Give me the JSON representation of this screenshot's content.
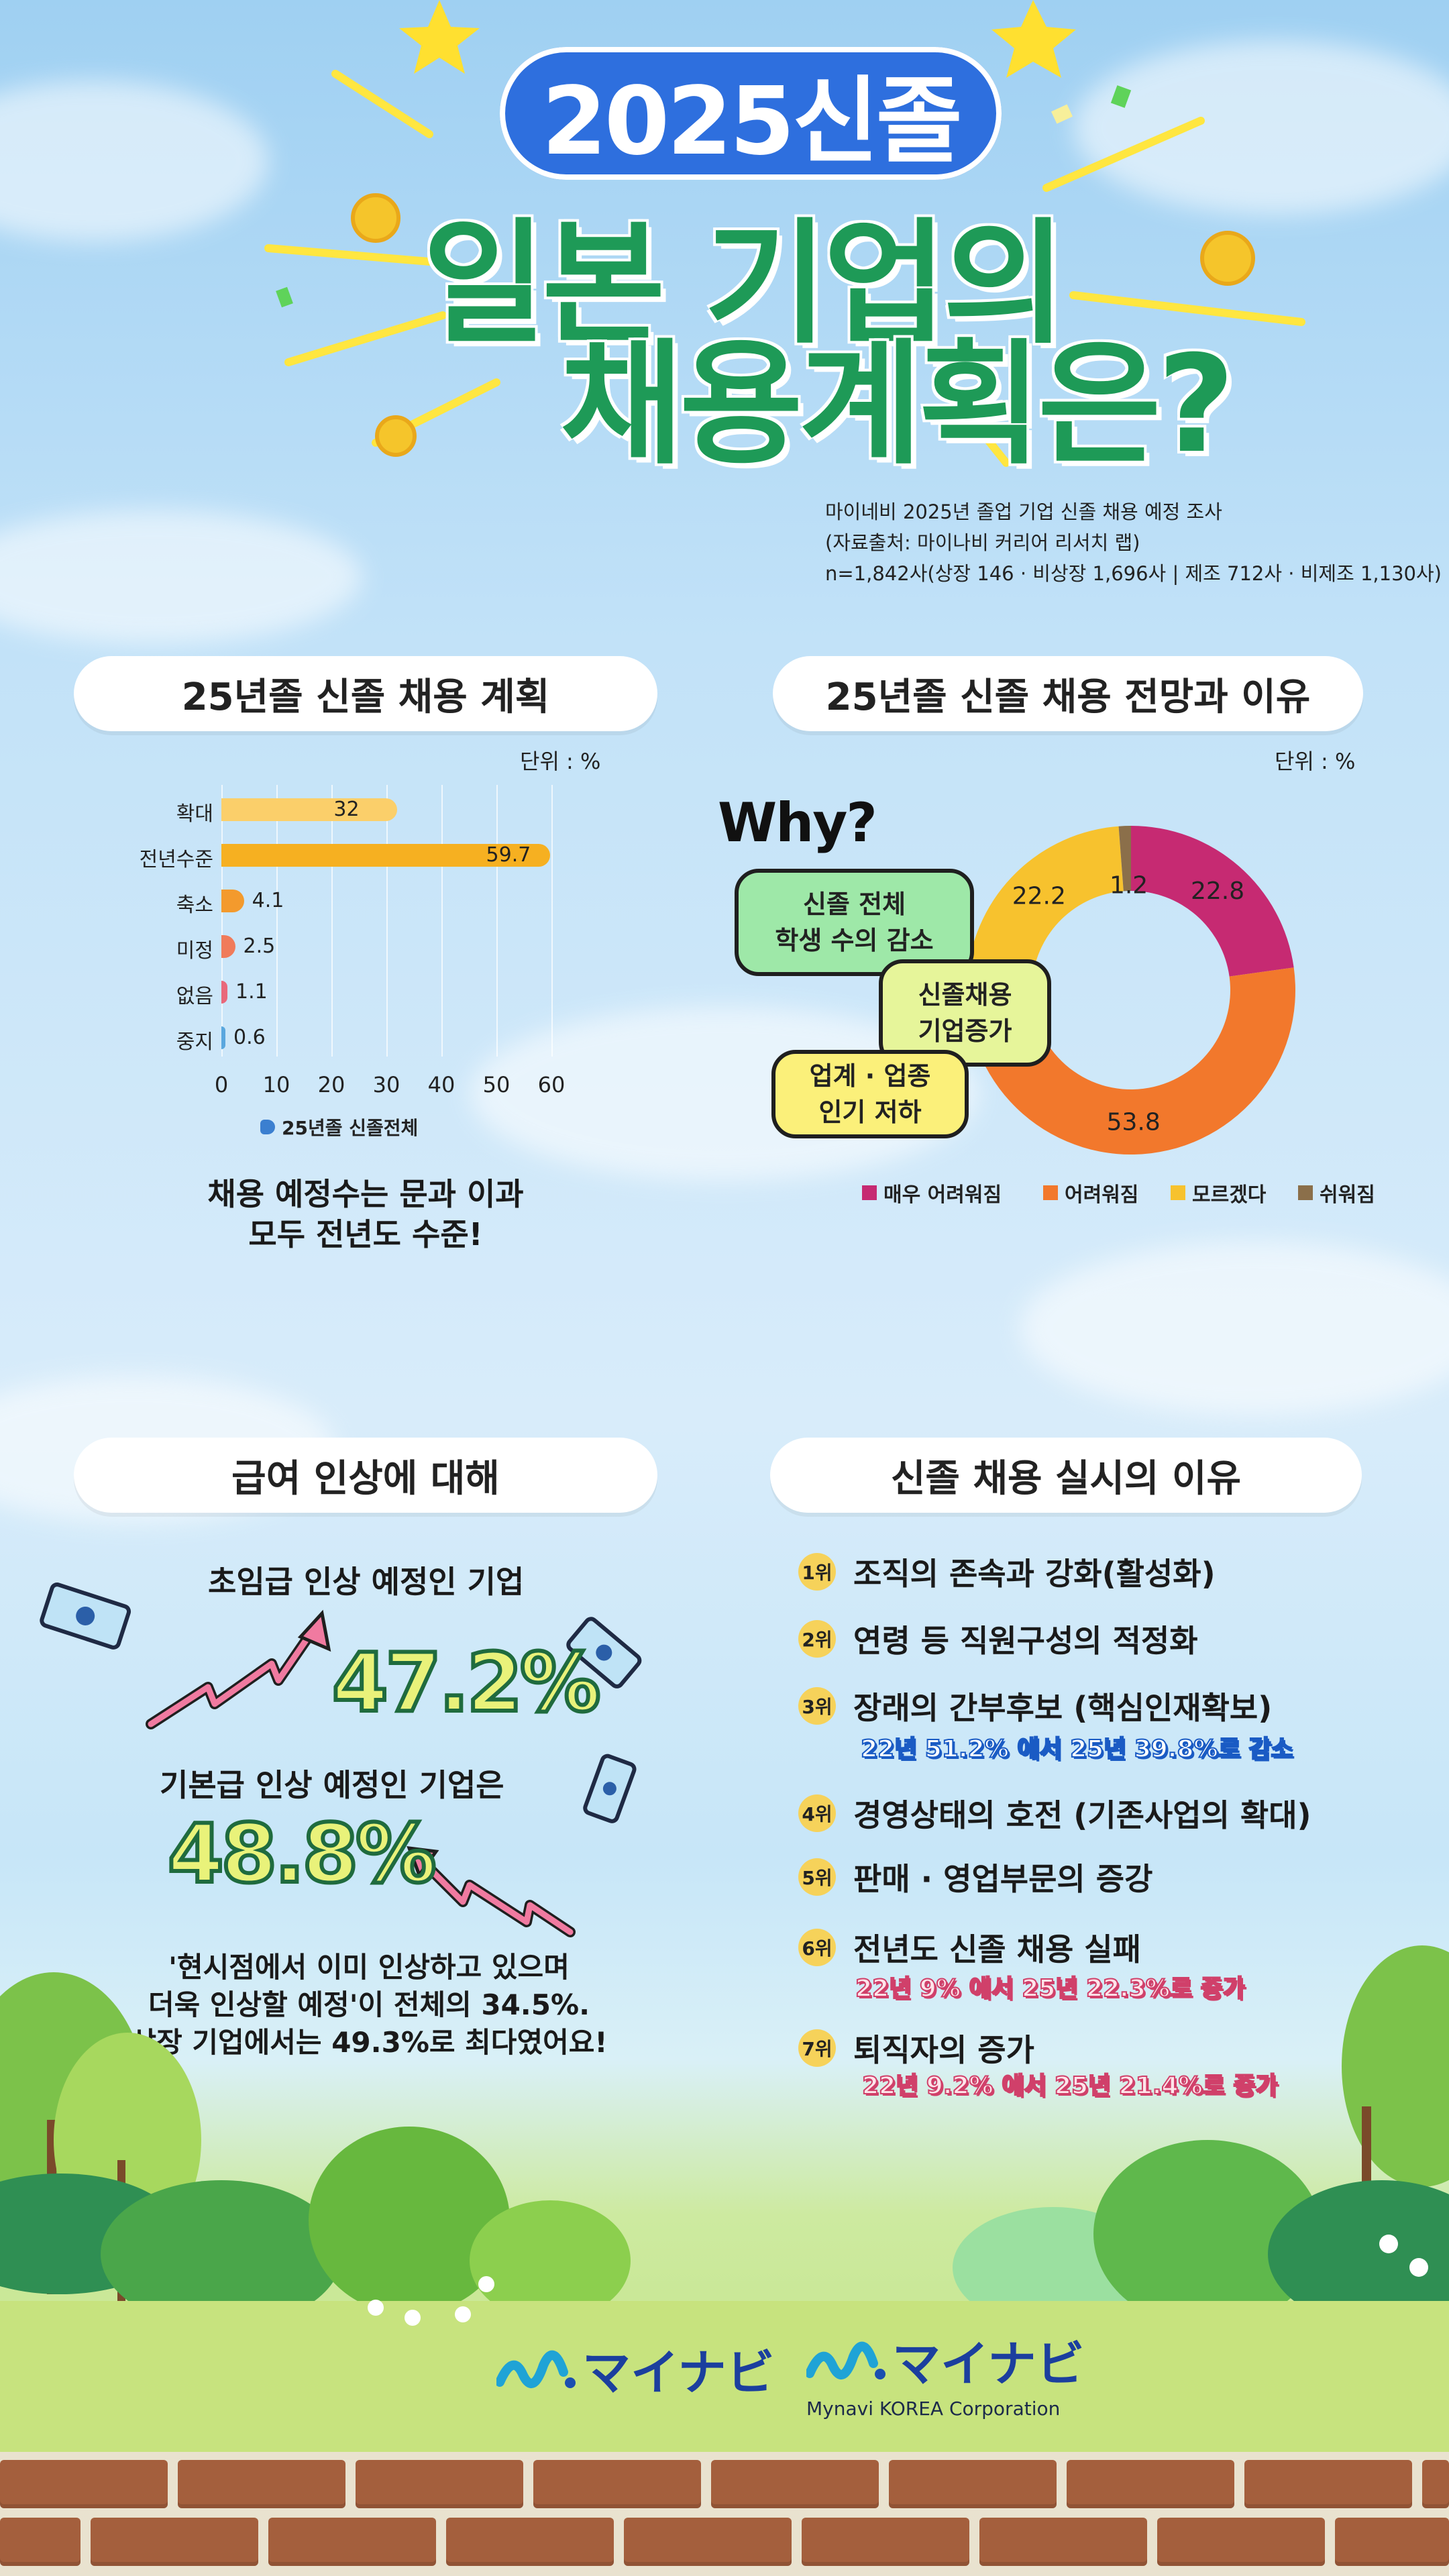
{
  "hero": {
    "badge": "2025신졸",
    "line1": "일본 기업의",
    "line2": "채용계획은?"
  },
  "source": {
    "line1": "마이네비 2025년 졸업 기업 신졸 채용 예정 조사",
    "line2": "(자료출처: 마이나비 커리어 리서치 랩)",
    "line3": "n=1,842사(상장 146 · 비상장 1,696사 | 제조 712사 · 비제조 1,130사)"
  },
  "section1": {
    "title": "25년졸 신졸 채용 계획",
    "unit": "단위 : %",
    "caption_line1": "채용 예정수는 문과 이과",
    "caption_line2": "모두 전년도 수준!"
  },
  "section2": {
    "title": "25년졸 신졸 채용 전망과 이유",
    "unit": "단위 : %",
    "why": "Why?",
    "bubbles": [
      {
        "line1": "신졸 전체",
        "line2": "학생 수의 감소"
      },
      {
        "line1": "신졸채용",
        "line2": "기업증가"
      },
      {
        "line1": "업계 · 업종",
        "line2": "인기 저하"
      }
    ]
  },
  "section3": {
    "title": "급여 인상에 대해",
    "label1": "초임급 인상 예정인 기업",
    "pct1": "47.2%",
    "label2": "기본급 인상 예정인 기업은",
    "pct2": "48.8%",
    "note_line1": "'현시점에서 이미 인상하고 있으며",
    "note_line2": "더욱 인상할 예정'이 전체의 34.5%.",
    "note_line3": "상장 기업에서는 49.3%로 최다였어요!"
  },
  "section4": {
    "title": "신졸 채용 실시의 이유",
    "items": [
      {
        "rank": "1위",
        "text": "조직의 존속과 강화(활성화)",
        "sub": ""
      },
      {
        "rank": "2위",
        "text": "연령 등 직원구성의 적정화",
        "sub": ""
      },
      {
        "rank": "3위",
        "text": "장래의 간부후보 (핵심인재확보)",
        "sub": "22년 51.2% 에서 25년 39.8%로 감소"
      },
      {
        "rank": "4위",
        "text": "경영상태의 호전 (기존사업의 확대)",
        "sub": ""
      },
      {
        "rank": "5위",
        "text": "판매 · 영업부문의 증강",
        "sub": ""
      },
      {
        "rank": "6위",
        "text": "전년도 신졸 채용 실패",
        "sub": "22년 9% 에서 25년 22.3%로 증가"
      },
      {
        "rank": "7위",
        "text": "퇴직자의 증가",
        "sub": "22년 9.2% 에서 25년 21.4%로 증가"
      }
    ]
  },
  "footer": {
    "logo1": "マイナビ",
    "logo2": "マイナビ",
    "logo2_sub": "Mynavi KOREA Corporation"
  },
  "chart_data": [
    {
      "type": "bar",
      "orientation": "horizontal",
      "categories": [
        "확대",
        "전년수준",
        "축소",
        "미정",
        "없음",
        "중지"
      ],
      "values": [
        32,
        59.7,
        4.1,
        2.5,
        1.1,
        0.6
      ],
      "value_labels": [
        "32",
        "59.7",
        "4.1",
        "2.5",
        "1.1",
        "0.6"
      ],
      "xticks": [
        "0",
        "10",
        "20",
        "30",
        "40",
        "50",
        "60"
      ],
      "xlim": [
        0,
        60
      ],
      "legend": "25년졸 신졸전체",
      "colors": [
        "#fbcf6a",
        "#f6b021",
        "#f39a2d",
        "#f07b5a",
        "#e9687a",
        "#5aa7de"
      ]
    },
    {
      "type": "pie",
      "style": "donut",
      "labels": [
        "매우 어려워짐",
        "어려워짐",
        "모르겠다",
        "쉬워짐"
      ],
      "values": [
        22.8,
        53.8,
        22.2,
        1.2
      ],
      "value_labels": [
        "22.8",
        "53.8",
        "22.2",
        "1.2"
      ],
      "colors": [
        "#c62a72",
        "#f2782c",
        "#f7c22e",
        "#8b6f4a"
      ],
      "legend_position": "bottom"
    }
  ]
}
